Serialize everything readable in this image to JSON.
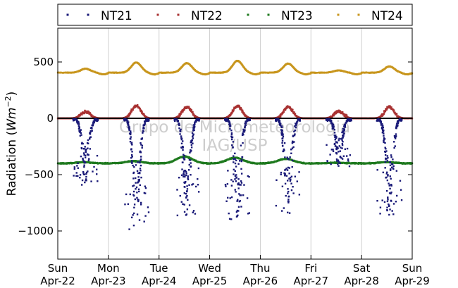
{
  "chart_data": {
    "type": "scatter",
    "title": "",
    "ylabel": "Radiation ($Wm^{-2}$)",
    "xlabel": "",
    "ylim": [
      -1250,
      800
    ],
    "xlim": [
      0,
      7
    ],
    "yticks": [
      -1000,
      -500,
      0,
      500
    ],
    "ytick_labels": [
      "−1000",
      "−500",
      "0",
      "500"
    ],
    "x_ticks": [
      {
        "x": 0,
        "day": "Sun",
        "date": "Apr-22"
      },
      {
        "x": 1,
        "day": "Mon",
        "date": "Apr-23"
      },
      {
        "x": 2,
        "day": "Tue",
        "date": "Apr-24"
      },
      {
        "x": 3,
        "day": "Wed",
        "date": "Apr-25"
      },
      {
        "x": 4,
        "day": "Thu",
        "date": "Apr-26"
      },
      {
        "x": 5,
        "day": "Fri",
        "date": "Apr-27"
      },
      {
        "x": 6,
        "day": "Sat",
        "date": "Apr-28"
      },
      {
        "x": 7,
        "day": "Sun",
        "date": "Apr-29"
      }
    ],
    "grid": "vertical",
    "hline": 0,
    "legend_position": "top",
    "watermark": [
      "Grupo de Micrometeorologia",
      "IAG/USP"
    ],
    "series": [
      {
        "name": "NT21",
        "color": "#1a1a78",
        "baseline": 0,
        "day_min": [
          -600,
          -1000,
          -880,
          -900,
          -860,
          -450,
          -900
        ]
      },
      {
        "name": "NT22",
        "color": "#a83232",
        "baseline": 0,
        "day_max": [
          60,
          110,
          100,
          110,
          100,
          60,
          100
        ]
      },
      {
        "name": "NT23",
        "color": "#1f7a1f",
        "baseline": -400,
        "day_max": [
          -390,
          -380,
          -340,
          -350,
          -360,
          -395,
          -390
        ]
      },
      {
        "name": "NT24",
        "color": "#c8961e",
        "baseline": 405,
        "day_max": [
          440,
          495,
          490,
          510,
          485,
          425,
          460
        ]
      }
    ]
  }
}
